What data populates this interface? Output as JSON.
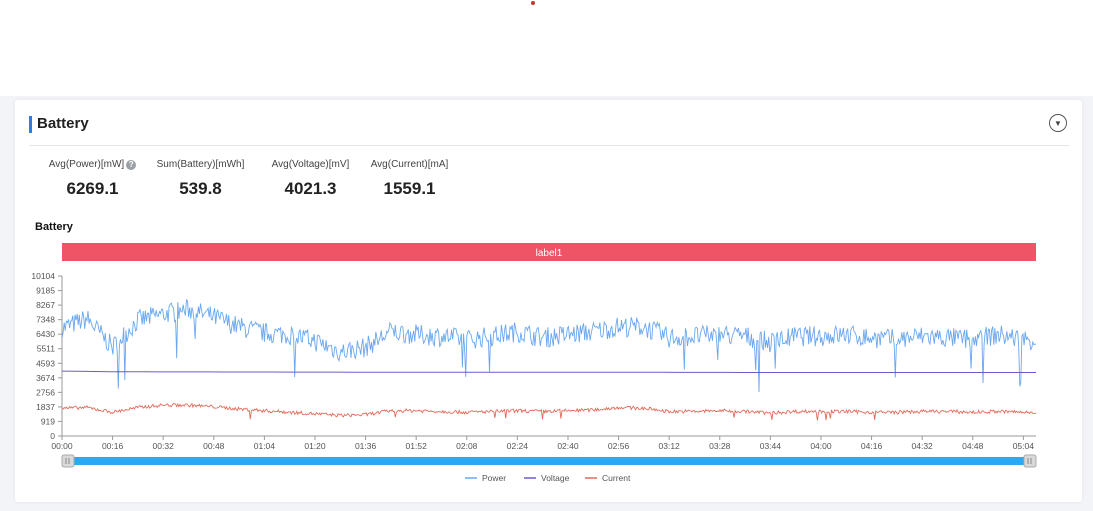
{
  "panel": {
    "title": "Battery"
  },
  "metrics": [
    {
      "label": "Avg(Power)[mW]",
      "value": "6269.1",
      "has_help": true
    },
    {
      "label": "Sum(Battery)[mWh]",
      "value": "539.8",
      "has_help": false
    },
    {
      "label": "Avg(Voltage)[mV]",
      "value": "4021.3",
      "has_help": false
    },
    {
      "label": "Avg(Current)[mA]",
      "value": "1559.1",
      "has_help": false
    }
  ],
  "chart_data": {
    "type": "line",
    "title": "Battery",
    "annotation_band": {
      "label": "label1",
      "color": "#ef5466",
      "x_range": [
        "00:00",
        "05:08"
      ]
    },
    "x_unit": "mm:ss",
    "x_range_seconds_label": [
      "00:00",
      "05:08"
    ],
    "xticks": [
      "00:00",
      "00:16",
      "00:32",
      "00:48",
      "01:04",
      "01:20",
      "01:36",
      "01:52",
      "02:08",
      "02:24",
      "02:40",
      "02:56",
      "03:12",
      "03:28",
      "03:44",
      "04:00",
      "04:16",
      "04:32",
      "04:48",
      "05:04"
    ],
    "yticks": [
      0,
      919,
      1837,
      2756,
      3674,
      4593,
      5511,
      6430,
      7348,
      8267,
      9185,
      10104
    ],
    "ylim": [
      0,
      10104
    ],
    "grid": false,
    "legend_position": "bottom",
    "colors": {
      "Power": "#6aa7f0",
      "Voltage": "#6a5acd",
      "Current": "#e36b5a"
    },
    "series": [
      {
        "name": "Power",
        "x": [
          "00:00",
          "00:08",
          "00:16",
          "00:24",
          "00:32",
          "00:40",
          "00:48",
          "00:56",
          "01:04",
          "01:12",
          "01:20",
          "01:28",
          "01:36",
          "01:44",
          "01:52",
          "02:00",
          "02:08",
          "02:16",
          "02:24",
          "02:32",
          "02:40",
          "02:48",
          "02:56",
          "03:04",
          "03:12",
          "03:20",
          "03:28",
          "03:36",
          "03:44",
          "03:52",
          "04:00",
          "04:08",
          "04:16",
          "04:24",
          "04:32",
          "04:40",
          "04:48",
          "04:56",
          "05:04",
          "05:08"
        ],
        "values": [
          6800,
          7400,
          5600,
          7300,
          7700,
          8000,
          7500,
          6900,
          6500,
          6400,
          6000,
          5300,
          5600,
          6600,
          6400,
          6300,
          6100,
          6300,
          6600,
          6200,
          6400,
          6600,
          6900,
          6900,
          6200,
          6300,
          6400,
          6300,
          5900,
          6300,
          6300,
          6400,
          6200,
          6100,
          6300,
          6200,
          6100,
          6400,
          6100,
          6100
        ]
      },
      {
        "name": "Voltage",
        "x": [
          "00:00",
          "00:16",
          "00:32",
          "01:04",
          "01:36",
          "02:08",
          "02:40",
          "03:12",
          "03:44",
          "04:16",
          "04:48",
          "05:08"
        ],
        "values": [
          4100,
          4060,
          4050,
          4040,
          4030,
          4030,
          4020,
          4020,
          4010,
          4010,
          4010,
          4010
        ]
      },
      {
        "name": "Current",
        "x": [
          "00:00",
          "00:08",
          "00:16",
          "00:24",
          "00:32",
          "00:40",
          "00:48",
          "00:56",
          "01:04",
          "01:12",
          "01:20",
          "01:28",
          "01:36",
          "01:44",
          "01:52",
          "02:00",
          "02:08",
          "02:16",
          "02:24",
          "02:32",
          "02:40",
          "02:48",
          "02:56",
          "03:04",
          "03:12",
          "03:20",
          "03:28",
          "03:36",
          "03:44",
          "03:52",
          "04:00",
          "04:08",
          "04:16",
          "04:24",
          "04:32",
          "04:40",
          "04:48",
          "04:56",
          "05:04",
          "05:08"
        ],
        "values": [
          1750,
          1800,
          1500,
          1800,
          1950,
          1950,
          1850,
          1700,
          1600,
          1500,
          1400,
          1300,
          1350,
          1600,
          1600,
          1550,
          1500,
          1550,
          1600,
          1550,
          1600,
          1650,
          1800,
          1750,
          1550,
          1550,
          1600,
          1550,
          1450,
          1550,
          1550,
          1550,
          1500,
          1500,
          1550,
          1550,
          1500,
          1550,
          1500,
          1500
        ]
      }
    ]
  }
}
